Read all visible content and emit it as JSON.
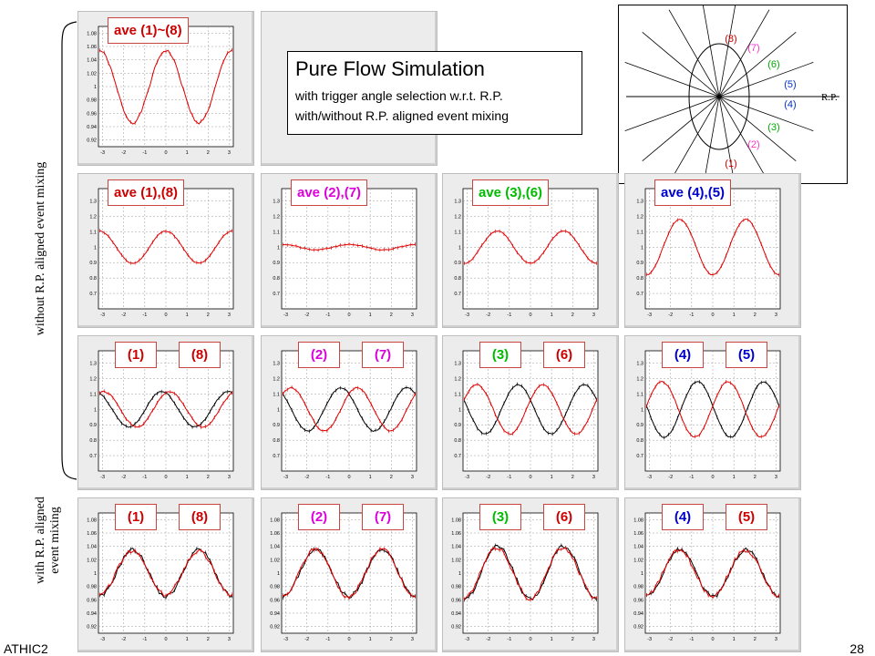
{
  "info_box": {
    "title": "Pure Flow Simulation",
    "line1": "with trigger angle selection w.r.t. R.P.",
    "line2": "with/without R.P. aligned event mixing"
  },
  "side_labels": {
    "without": "without R.P. aligned event mixing",
    "with_line1": "with R.P. aligned",
    "with_line2": "event mixing"
  },
  "footer": {
    "left": "ATHIC2",
    "right": "28"
  },
  "diagram": {
    "rp_label": "R.P.",
    "bins": [
      {
        "label": "(8)",
        "color": "#cc0000"
      },
      {
        "label": "(7)",
        "color": "#ff33cc"
      },
      {
        "label": "(6)",
        "color": "#00aa00"
      },
      {
        "label": "(5)",
        "color": "#0033cc"
      },
      {
        "label": "(4)",
        "color": "#0033cc"
      },
      {
        "label": "(3)",
        "color": "#00aa00"
      },
      {
        "label": "(2)",
        "color": "#ff33cc"
      },
      {
        "label": "(1)",
        "color": "#cc0000"
      }
    ]
  },
  "colors": {
    "black_series": "#000000",
    "red_series": "#e00000",
    "bin18": "#cc0000",
    "bin27": "#dd00dd",
    "bin36": "#00bb00",
    "bin45": "#0000cc"
  },
  "chart_data": [
    {
      "id": "ave18",
      "type": "line",
      "legend": [
        "ave (1)~(8)"
      ],
      "legend_colors": [
        "#cc0000"
      ],
      "ylim": [
        0.91,
        1.09
      ],
      "yticks": [
        "0.92",
        "0.94",
        "0.96",
        "0.98",
        "1",
        "1.02",
        "1.04",
        "1.06",
        "1.08"
      ],
      "xticks": [
        "-3",
        "-2",
        "-1",
        "0",
        "1",
        "2",
        "3"
      ],
      "xlim": [
        -3.2,
        3.2
      ],
      "series": [
        {
          "color": "red",
          "offset": 1,
          "amp": 0.054,
          "freq": 2,
          "phase": 0,
          "noise": 0.002
        }
      ]
    },
    {
      "id": "ave_1_8",
      "type": "line",
      "legend": [
        "ave (1),(8)"
      ],
      "legend_colors": [
        "#cc0000"
      ],
      "ylim": [
        0.6,
        1.38
      ],
      "yticks": [
        "0.7",
        "0.8",
        "0.9",
        "1",
        "1.1",
        "1.2",
        "1.3"
      ],
      "xticks": [
        "-3",
        "-2",
        "-1",
        "0",
        "1",
        "2",
        "3"
      ],
      "xlim": [
        -3.2,
        3.2
      ],
      "series": [
        {
          "color": "red",
          "offset": 1,
          "amp": 0.105,
          "freq": 2,
          "phase": 0,
          "noise": 0.003
        }
      ]
    },
    {
      "id": "ave_2_7",
      "type": "line",
      "legend": [
        "ave (2),(7)"
      ],
      "legend_colors": [
        "#dd00dd"
      ],
      "ylim": [
        0.6,
        1.38
      ],
      "yticks": [
        "0.7",
        "0.8",
        "0.9",
        "1",
        "1.1",
        "1.2",
        "1.3"
      ],
      "xticks": [
        "-3",
        "-2",
        "-1",
        "0",
        "1",
        "2",
        "3"
      ],
      "xlim": [
        -3.2,
        3.2
      ],
      "series": [
        {
          "color": "red",
          "offset": 1,
          "amp": 0.018,
          "freq": 2,
          "phase": 0,
          "noise": 0.003
        }
      ]
    },
    {
      "id": "ave_3_6",
      "type": "line",
      "legend": [
        "ave (3),(6)"
      ],
      "legend_colors": [
        "#00bb00"
      ],
      "ylim": [
        0.6,
        1.38
      ],
      "yticks": [
        "0.7",
        "0.8",
        "0.9",
        "1",
        "1.1",
        "1.2",
        "1.3"
      ],
      "xticks": [
        "-3",
        "-2",
        "-1",
        "0",
        "1",
        "2",
        "3"
      ],
      "xlim": [
        -3.2,
        3.2
      ],
      "series": [
        {
          "color": "red",
          "offset": 1,
          "amp": -0.105,
          "freq": 2,
          "phase": 0,
          "noise": 0.003
        }
      ]
    },
    {
      "id": "ave_4_5",
      "type": "line",
      "legend": [
        "ave (4),(5)"
      ],
      "legend_colors": [
        "#0000cc"
      ],
      "ylim": [
        0.6,
        1.38
      ],
      "yticks": [
        "0.7",
        "0.8",
        "0.9",
        "1",
        "1.1",
        "1.2",
        "1.3"
      ],
      "xticks": [
        "-3",
        "-2",
        "-1",
        "0",
        "1",
        "2",
        "3"
      ],
      "xlim": [
        -3.2,
        3.2
      ],
      "series": [
        {
          "color": "red",
          "offset": 1,
          "amp": -0.18,
          "freq": 2,
          "phase": 0,
          "noise": 0.003
        }
      ]
    },
    {
      "id": "pair_1_8",
      "type": "line",
      "legend": [
        "(1)",
        "(8)"
      ],
      "legend_colors": [
        "#cc0000",
        "#cc0000"
      ],
      "ylim": [
        0.6,
        1.38
      ],
      "yticks": [
        "0.7",
        "0.8",
        "0.9",
        "1",
        "1.1",
        "1.2",
        "1.3"
      ],
      "xticks": [
        "-3",
        "-2",
        "-1",
        "0",
        "1",
        "2",
        "3"
      ],
      "xlim": [
        -3.2,
        3.2
      ],
      "series": [
        {
          "color": "black",
          "offset": 1,
          "amp": 0.115,
          "freq": 2,
          "phase": 0.39,
          "noise": 0.004
        },
        {
          "color": "red",
          "offset": 1,
          "amp": 0.115,
          "freq": 2,
          "phase": -0.39,
          "noise": 0.004
        }
      ]
    },
    {
      "id": "pair_2_7",
      "type": "line",
      "legend": [
        "(2)",
        "(7)"
      ],
      "legend_colors": [
        "#dd00dd",
        "#dd00dd"
      ],
      "ylim": [
        0.6,
        1.38
      ],
      "yticks": [
        "0.7",
        "0.8",
        "0.9",
        "1",
        "1.1",
        "1.2",
        "1.3"
      ],
      "xticks": [
        "-3",
        "-2",
        "-1",
        "0",
        "1",
        "2",
        "3"
      ],
      "xlim": [
        -3.2,
        3.2
      ],
      "series": [
        {
          "color": "black",
          "offset": 1,
          "amp": 0.14,
          "freq": 2,
          "phase": 0.78,
          "noise": 0.004
        },
        {
          "color": "red",
          "offset": 1,
          "amp": 0.14,
          "freq": 2,
          "phase": -0.78,
          "noise": 0.004
        }
      ]
    },
    {
      "id": "pair_3_6",
      "type": "line",
      "legend": [
        "(3)",
        "(6)"
      ],
      "legend_colors": [
        "#00bb00",
        "#cc0000"
      ],
      "ylim": [
        0.6,
        1.38
      ],
      "yticks": [
        "0.7",
        "0.8",
        "0.9",
        "1",
        "1.1",
        "1.2",
        "1.3"
      ],
      "xticks": [
        "-3",
        "-2",
        "-1",
        "0",
        "1",
        "2",
        "3"
      ],
      "xlim": [
        -3.2,
        3.2
      ],
      "series": [
        {
          "color": "black",
          "offset": 1,
          "amp": 0.16,
          "freq": 2,
          "phase": 1.18,
          "noise": 0.004
        },
        {
          "color": "red",
          "offset": 1,
          "amp": 0.16,
          "freq": 2,
          "phase": -1.18,
          "noise": 0.004
        }
      ]
    },
    {
      "id": "pair_4_5",
      "type": "line",
      "legend": [
        "(4)",
        "(5)"
      ],
      "legend_colors": [
        "#0000cc",
        "#0000cc"
      ],
      "ylim": [
        0.6,
        1.38
      ],
      "yticks": [
        "0.7",
        "0.8",
        "0.9",
        "1",
        "1.1",
        "1.2",
        "1.3"
      ],
      "xticks": [
        "-3",
        "-2",
        "-1",
        "0",
        "1",
        "2",
        "3"
      ],
      "xlim": [
        -3.2,
        3.2
      ],
      "series": [
        {
          "color": "black",
          "offset": 1,
          "amp": 0.18,
          "freq": 2,
          "phase": 1.45,
          "noise": 0.004
        },
        {
          "color": "red",
          "offset": 1,
          "amp": 0.18,
          "freq": 2,
          "phase": -1.45,
          "noise": 0.004
        }
      ]
    },
    {
      "id": "mix_1_8",
      "type": "line",
      "legend": [
        "(1)",
        "(8)"
      ],
      "legend_colors": [
        "#cc0000",
        "#cc0000"
      ],
      "ylim": [
        0.91,
        1.09
      ],
      "yticks": [
        "0.92",
        "0.94",
        "0.96",
        "0.98",
        "1",
        "1.02",
        "1.04",
        "1.06",
        "1.08"
      ],
      "xticks": [
        "-3",
        "-2",
        "-1",
        "0",
        "1",
        "2",
        "3"
      ],
      "xlim": [
        -3.2,
        3.2
      ],
      "series": [
        {
          "color": "black",
          "offset": 1,
          "amp": -0.035,
          "freq": 2,
          "phase": 0,
          "noise": 0.003
        },
        {
          "color": "red",
          "offset": 1,
          "amp": -0.033,
          "freq": 2,
          "phase": 0.05,
          "noise": 0.003
        }
      ]
    },
    {
      "id": "mix_2_7",
      "type": "line",
      "legend": [
        "(2)",
        "(7)"
      ],
      "legend_colors": [
        "#dd00dd",
        "#dd00dd"
      ],
      "ylim": [
        0.91,
        1.09
      ],
      "yticks": [
        "0.92",
        "0.94",
        "0.96",
        "0.98",
        "1",
        "1.02",
        "1.04",
        "1.06",
        "1.08"
      ],
      "xticks": [
        "-3",
        "-2",
        "-1",
        "0",
        "1",
        "2",
        "3"
      ],
      "xlim": [
        -3.2,
        3.2
      ],
      "series": [
        {
          "color": "black",
          "offset": 1,
          "amp": -0.035,
          "freq": 2,
          "phase": 0,
          "noise": 0.003
        },
        {
          "color": "red",
          "offset": 1,
          "amp": -0.036,
          "freq": 2,
          "phase": 0.05,
          "noise": 0.003
        }
      ]
    },
    {
      "id": "mix_3_6",
      "type": "line",
      "legend": [
        "(3)",
        "(6)"
      ],
      "legend_colors": [
        "#00bb00",
        "#cc0000"
      ],
      "ylim": [
        0.91,
        1.09
      ],
      "yticks": [
        "0.92",
        "0.94",
        "0.96",
        "0.98",
        "1",
        "1.02",
        "1.04",
        "1.06",
        "1.08"
      ],
      "xticks": [
        "-3",
        "-2",
        "-1",
        "0",
        "1",
        "2",
        "3"
      ],
      "xlim": [
        -3.2,
        3.2
      ],
      "series": [
        {
          "color": "black",
          "offset": 1,
          "amp": -0.04,
          "freq": 2,
          "phase": 0,
          "noise": 0.003
        },
        {
          "color": "red",
          "offset": 1,
          "amp": -0.038,
          "freq": 2,
          "phase": 0.05,
          "noise": 0.003
        }
      ]
    },
    {
      "id": "mix_4_5",
      "type": "line",
      "legend": [
        "(4)",
        "(5)"
      ],
      "legend_colors": [
        "#0000cc",
        "#cc0000"
      ],
      "ylim": [
        0.91,
        1.09
      ],
      "yticks": [
        "0.92",
        "0.94",
        "0.96",
        "0.98",
        "1",
        "1.02",
        "1.04",
        "1.06",
        "1.08"
      ],
      "xticks": [
        "-3",
        "-2",
        "-1",
        "0",
        "1",
        "2",
        "3"
      ],
      "xlim": [
        -3.2,
        3.2
      ],
      "series": [
        {
          "color": "black",
          "offset": 1,
          "amp": -0.035,
          "freq": 2,
          "phase": 0,
          "noise": 0.003
        },
        {
          "color": "red",
          "offset": 1,
          "amp": -0.034,
          "freq": 2,
          "phase": 0.05,
          "noise": 0.003
        }
      ]
    }
  ]
}
